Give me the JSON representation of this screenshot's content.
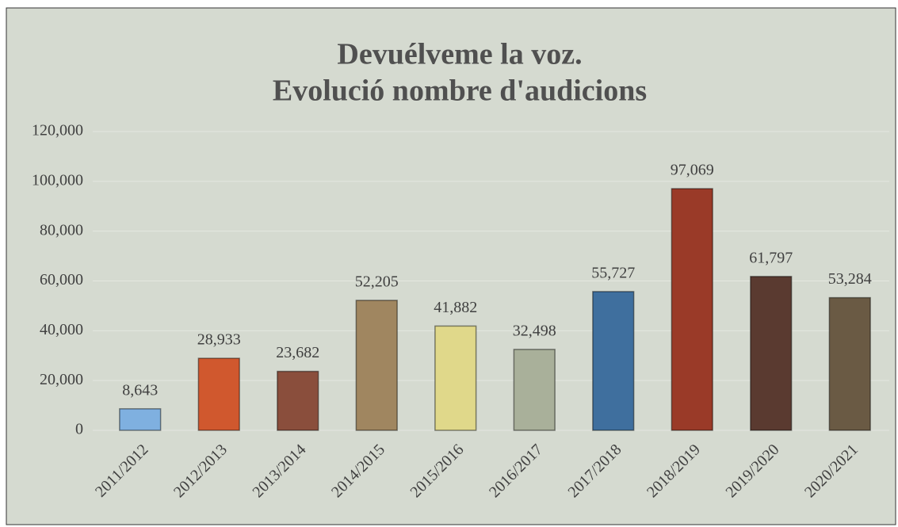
{
  "chart_data": {
    "type": "bar",
    "title": "Devuélveme la voz.",
    "subtitle": "Evolució nombre d'audicions",
    "categories": [
      "2011/2012",
      "2012/2013",
      "2013/2014",
      "2014/2015",
      "2015/2016",
      "2016/2017",
      "2017/2018",
      "2018/2019",
      "2019/2020",
      "2020/2021"
    ],
    "values": [
      8643,
      28933,
      23682,
      52205,
      41882,
      32498,
      55727,
      97069,
      61797,
      53284
    ],
    "value_labels": [
      "8,643",
      "28,933",
      "23,682",
      "52,205",
      "41,882",
      "32,498",
      "55,727",
      "97,069",
      "61,797",
      "53,284"
    ],
    "colors": [
      "#7fb0e0",
      "#d0582e",
      "#8a4e3c",
      "#a08660",
      "#e0d88a",
      "#a9b09a",
      "#3f6f9e",
      "#9a3a28",
      "#5a3a30",
      "#6a5a44"
    ],
    "ylim": [
      0,
      120000
    ],
    "yticks": [
      {
        "value": 0,
        "label": "0"
      },
      {
        "value": 20000,
        "label": "20,000"
      },
      {
        "value": 40000,
        "label": "40,000"
      },
      {
        "value": 60000,
        "label": "60,000"
      },
      {
        "value": 80000,
        "label": "80,000"
      },
      {
        "value": 100000,
        "label": "100,000"
      },
      {
        "value": 120000,
        "label": "120,000"
      }
    ],
    "grid": true
  }
}
